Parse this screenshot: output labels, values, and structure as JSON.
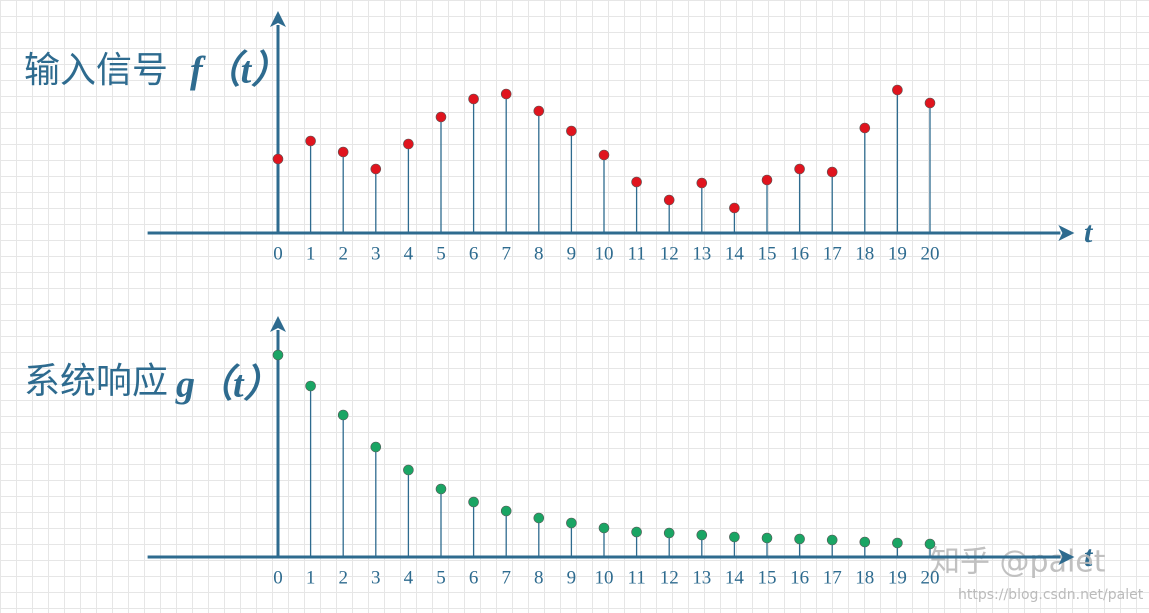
{
  "charts_note_free": null,
  "chart_data": [
    {
      "type": "stem",
      "title": "输入信号",
      "y_label": "f（t）",
      "x_label": "t",
      "x": [
        0,
        1,
        2,
        3,
        4,
        5,
        6,
        7,
        8,
        9,
        10,
        11,
        12,
        13,
        14,
        15,
        16,
        17,
        18,
        19,
        20
      ],
      "values": [
        74,
        92,
        81,
        64,
        89,
        116,
        134,
        139,
        122,
        102,
        78,
        51,
        33,
        50,
        25,
        53,
        64,
        61,
        105,
        143,
        130
      ],
      "color": "#e0141e",
      "xlim": [
        -4,
        24
      ],
      "ylim": [
        0,
        208
      ]
    },
    {
      "type": "stem",
      "title": "系统响应",
      "y_label": "g（t）",
      "x_label": "t",
      "x": [
        0,
        1,
        2,
        3,
        4,
        5,
        6,
        7,
        8,
        9,
        10,
        11,
        12,
        13,
        14,
        15,
        16,
        17,
        18,
        19,
        20
      ],
      "values": [
        202,
        171,
        142,
        110,
        87,
        68,
        55,
        46,
        39,
        34,
        29,
        25,
        24,
        22,
        20,
        19,
        18,
        17,
        15,
        14,
        13
      ],
      "color": "#1aa564",
      "xlim": [
        -4,
        24
      ],
      "ylim": [
        0,
        227
      ]
    }
  ],
  "watermark": {
    "brand": "知乎 @palet",
    "url": "https://blog.csdn.net/palet"
  }
}
